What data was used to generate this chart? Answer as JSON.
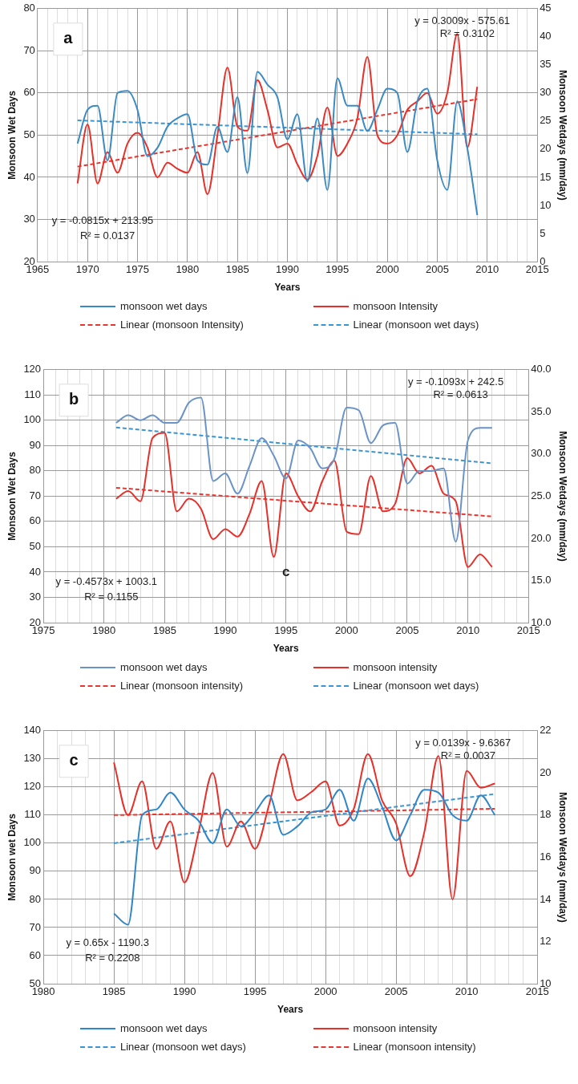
{
  "chart_data": [
    {
      "type": "line",
      "title": "a",
      "xlabel": "Years",
      "ylabel": "Monsoon Wet Days",
      "y2label": "Monsoon Wetdays (mm/day)",
      "grid": true,
      "legend": "bottom",
      "marker": "none",
      "xlim": [
        1965,
        2015
      ],
      "ylim": [
        20,
        80
      ],
      "y2lim": [
        0,
        45
      ],
      "xticks": [
        1965,
        {
          "value": 1966,
          "label": null
        },
        {
          "value": 1967,
          "label": null
        },
        {
          "value": 1968,
          "label": null
        },
        {
          "value": 1969,
          "label": null
        },
        1970,
        {
          "value": 1971,
          "label": null
        },
        {
          "value": 1972,
          "label": null
        },
        {
          "value": 1973,
          "label": null
        },
        {
          "value": 1974,
          "label": null
        },
        1975,
        {
          "value": 1976,
          "label": null
        },
        {
          "value": 1977,
          "label": null
        },
        {
          "value": 1978,
          "label": null
        },
        {
          "value": 1979,
          "label": null
        },
        1980,
        {
          "value": 1981,
          "label": null
        },
        {
          "value": 1982,
          "label": null
        },
        {
          "value": 1983,
          "label": null
        },
        {
          "value": 1984,
          "label": null
        },
        1985,
        {
          "value": 1986,
          "label": null
        },
        {
          "value": 1987,
          "label": null
        },
        {
          "value": 1988,
          "label": null
        },
        {
          "value": 1989,
          "label": null
        },
        1990,
        {
          "value": 1991,
          "label": null
        },
        {
          "value": 1992,
          "label": null
        },
        {
          "value": 1993,
          "label": null
        },
        {
          "value": 1994,
          "label": null
        },
        1995,
        {
          "value": 1996,
          "label": null
        },
        {
          "value": 1997,
          "label": null
        },
        {
          "value": 1998,
          "label": null
        },
        {
          "value": 1999,
          "label": null
        },
        2000,
        {
          "value": 2001,
          "label": null
        },
        {
          "value": 2002,
          "label": null
        },
        {
          "value": 2003,
          "label": null
        },
        {
          "value": 2004,
          "label": null
        },
        2005,
        {
          "value": 2006,
          "label": null
        },
        {
          "value": 2007,
          "label": null
        },
        {
          "value": 2008,
          "label": null
        },
        {
          "value": 2009,
          "label": null
        },
        2010,
        {
          "value": 2011,
          "label": null
        },
        {
          "value": 2012,
          "label": null
        },
        {
          "value": 2013,
          "label": null
        },
        {
          "value": 2014,
          "label": null
        },
        2015
      ],
      "yticks": [
        20,
        30,
        40,
        50,
        60,
        70,
        80
      ],
      "y2ticks": [
        0,
        5,
        10,
        15,
        20,
        25,
        30,
        35,
        40,
        45
      ],
      "x": [
        1969,
        1970,
        1971,
        1972,
        1973,
        1974,
        1975,
        1976,
        1977,
        1978,
        1979,
        1980,
        1981,
        1982,
        1983,
        1984,
        1985,
        1986,
        1987,
        1988,
        1989,
        1990,
        1991,
        1992,
        1993,
        1994,
        1995,
        1996,
        1997,
        1998,
        1999,
        2000,
        2001,
        2002,
        2003,
        2004,
        2005,
        2006,
        2007,
        2008,
        2009
      ],
      "series": [
        {
          "name": "monsoon wet days",
          "color": "#3a8ac4",
          "values": [
            48,
            56,
            57,
            44,
            60,
            60.5,
            56,
            45,
            47,
            52,
            54,
            55,
            44,
            43,
            52,
            46,
            59,
            41,
            65,
            62,
            59,
            49,
            55,
            39,
            54,
            37,
            63.5,
            57,
            57,
            51,
            56,
            61,
            60,
            46,
            58,
            61,
            44,
            37,
            58,
            47,
            31
          ]
        },
        {
          "name": "monsoon Intensity",
          "color": "#e8302a",
          "axis": "y2",
          "values": [
            13.9,
            24.4,
            13.9,
            19.5,
            15.8,
            21,
            22.9,
            20.3,
            15,
            17.6,
            16.5,
            15.8,
            19.5,
            12,
            22.5,
            34.5,
            24,
            23.3,
            32.3,
            27,
            20.3,
            21,
            17.3,
            14.6,
            18.8,
            27.4,
            18.8,
            21,
            25.5,
            36.4,
            22.5,
            21,
            22.5,
            27,
            28.5,
            30,
            26.3,
            30,
            40.5,
            20.3,
            31.1
          ]
        },
        {
          "name": "Linear (monsoon Intensity)",
          "color": "#e8362e",
          "axis": "y2",
          "type": "line",
          "line_style": "dashed",
          "x": [
            1969,
            2009
          ],
          "values": [
            16.9,
            28.9
          ]
        },
        {
          "name": "Linear (monsoon wet days)",
          "color": "#3a95d3",
          "type": "line",
          "line_style": "dashed",
          "x": [
            1969,
            2009
          ],
          "values": [
            53.5,
            50.2
          ]
        }
      ],
      "annotations": [
        "y = 0.3009x - 575.61",
        "R² = 0.3102",
        "y = -0.0815x + 213.95",
        "R² = 0.0137"
      ]
    },
    {
      "type": "line",
      "title": "b",
      "xlabel": "Years",
      "ylabel": "Monsoon Wet Days",
      "y2label": "Monsoon Wetdays (mm/day)",
      "grid": true,
      "legend": "bottom",
      "marker": "none",
      "xlim": [
        1975,
        2015
      ],
      "ylim": [
        20,
        120
      ],
      "y2lim": [
        10,
        40
      ],
      "xticks": [
        1975,
        {
          "value": 1976,
          "label": null
        },
        {
          "value": 1977,
          "label": null
        },
        {
          "value": 1978,
          "label": null
        },
        {
          "value": 1979,
          "label": null
        },
        1980,
        {
          "value": 1981,
          "label": null
        },
        {
          "value": 1982,
          "label": null
        },
        {
          "value": 1983,
          "label": null
        },
        {
          "value": 1984,
          "label": null
        },
        1985,
        {
          "value": 1986,
          "label": null
        },
        {
          "value": 1987,
          "label": null
        },
        {
          "value": 1988,
          "label": null
        },
        {
          "value": 1989,
          "label": null
        },
        1990,
        {
          "value": 1991,
          "label": null
        },
        {
          "value": 1992,
          "label": null
        },
        {
          "value": 1993,
          "label": null
        },
        {
          "value": 1994,
          "label": null
        },
        1995,
        {
          "value": 1996,
          "label": null
        },
        {
          "value": 1997,
          "label": null
        },
        {
          "value": 1998,
          "label": null
        },
        {
          "value": 1999,
          "label": null
        },
        2000,
        {
          "value": 2001,
          "label": null
        },
        {
          "value": 2002,
          "label": null
        },
        {
          "value": 2003,
          "label": null
        },
        {
          "value": 2004,
          "label": null
        },
        2005,
        {
          "value": 2006,
          "label": null
        },
        {
          "value": 2007,
          "label": null
        },
        {
          "value": 2008,
          "label": null
        },
        {
          "value": 2009,
          "label": null
        },
        2010,
        {
          "value": 2011,
          "label": null
        },
        {
          "value": 2012,
          "label": null
        },
        {
          "value": 2013,
          "label": null
        },
        {
          "value": 2014,
          "label": null
        },
        2015
      ],
      "yticks": [
        20,
        30,
        40,
        50,
        60,
        70,
        80,
        90,
        100,
        110,
        120
      ],
      "y2ticks": [
        {
          "value": 10,
          "label": "10.0"
        },
        {
          "value": 15,
          "label": "15.0"
        },
        {
          "value": 20,
          "label": "20.0"
        },
        {
          "value": 25,
          "label": "25.0"
        },
        {
          "value": 30,
          "label": "30.0"
        },
        {
          "value": 35,
          "label": "35.0"
        },
        {
          "value": 40,
          "label": "40.0"
        }
      ],
      "x": [
        1981,
        1982,
        1983,
        1984,
        1985,
        1986,
        1987,
        1988,
        1989,
        1990,
        1991,
        1992,
        1993,
        1994,
        1995,
        1996,
        1997,
        1998,
        1999,
        2000,
        2001,
        2002,
        2003,
        2004,
        2005,
        2006,
        2007,
        2008,
        2009,
        2010,
        2011,
        2012
      ],
      "series": [
        {
          "name": "monsoon wet days",
          "color": "#6a93c8",
          "values": [
            99,
            102,
            100,
            102,
            99,
            99,
            107,
            109,
            76,
            79,
            71,
            82,
            93,
            86,
            77,
            92,
            89,
            81,
            85,
            105,
            104,
            91,
            98,
            99,
            75,
            80,
            80,
            81,
            52,
            92,
            97,
            97
          ]
        },
        {
          "name": "monsoon intensity",
          "color": "#e8302a",
          "axis": "y2",
          "values": [
            24.7,
            25.6,
            24.4,
            31.9,
            32.5,
            23.2,
            24.7,
            23.5,
            19.9,
            21.1,
            20.2,
            22.9,
            26.8,
            17.8,
            27.7,
            25,
            23.2,
            26.8,
            29.2,
            20.8,
            20.5,
            27.4,
            23.2,
            24.1,
            29.5,
            27.7,
            28.6,
            25.3,
            24.4,
            16.6,
            18.1,
            16.6
          ]
        },
        {
          "name": "Linear (monsoon intensity)",
          "color": "#e8362e",
          "axis": "y2",
          "type": "line",
          "line_style": "dashed",
          "x": [
            1981,
            2012
          ],
          "values": [
            26.0,
            22.6
          ]
        },
        {
          "name": "Linear (monsoon wet days)",
          "color": "#3a95d3",
          "type": "line",
          "line_style": "dashed",
          "x": [
            1981,
            2012
          ],
          "values": [
            97.2,
            83.0
          ]
        }
      ],
      "annotations": [
        "y = -0.1093x + 242.5",
        "R² = 0.0613",
        "y = -0.4573x + 1003.1",
        "R² = 0.1155",
        "c"
      ]
    },
    {
      "type": "line",
      "title": "c",
      "xlabel": "Years",
      "ylabel": "Monsoon wet Days",
      "y2label": "Monsoon Wetdays (mm/day)",
      "grid": true,
      "legend": "bottom",
      "marker": "none",
      "xlim": [
        1980,
        2015
      ],
      "ylim": [
        50,
        140
      ],
      "y2lim": [
        10,
        22
      ],
      "xticks": [
        1980,
        {
          "value": 1981,
          "label": null
        },
        {
          "value": 1982,
          "label": null
        },
        {
          "value": 1983,
          "label": null
        },
        {
          "value": 1984,
          "label": null
        },
        1985,
        {
          "value": 1986,
          "label": null
        },
        {
          "value": 1987,
          "label": null
        },
        {
          "value": 1988,
          "label": null
        },
        {
          "value": 1989,
          "label": null
        },
        1990,
        {
          "value": 1991,
          "label": null
        },
        {
          "value": 1992,
          "label": null
        },
        {
          "value": 1993,
          "label": null
        },
        {
          "value": 1994,
          "label": null
        },
        1995,
        {
          "value": 1996,
          "label": null
        },
        {
          "value": 1997,
          "label": null
        },
        {
          "value": 1998,
          "label": null
        },
        {
          "value": 1999,
          "label": null
        },
        2000,
        {
          "value": 2001,
          "label": null
        },
        {
          "value": 2002,
          "label": null
        },
        {
          "value": 2003,
          "label": null
        },
        {
          "value": 2004,
          "label": null
        },
        2005,
        {
          "value": 2006,
          "label": null
        },
        {
          "value": 2007,
          "label": null
        },
        {
          "value": 2008,
          "label": null
        },
        {
          "value": 2009,
          "label": null
        },
        2010,
        {
          "value": 2011,
          "label": null
        },
        {
          "value": 2012,
          "label": null
        },
        {
          "value": 2013,
          "label": null
        },
        {
          "value": 2014,
          "label": null
        },
        2015
      ],
      "yticks": [
        50,
        60,
        70,
        80,
        90,
        100,
        110,
        120,
        130,
        140
      ],
      "y2ticks": [
        10,
        12,
        14,
        16,
        18,
        20,
        22
      ],
      "x": [
        1985,
        1986,
        1987,
        1988,
        1989,
        1990,
        1991,
        1992,
        1993,
        1994,
        1995,
        1996,
        1997,
        1998,
        1999,
        2000,
        2001,
        2002,
        2003,
        2004,
        2005,
        2006,
        2007,
        2008,
        2009,
        2010,
        2011,
        2012
      ],
      "series": [
        {
          "name": "monsoon wet days",
          "color": "#2f86c8",
          "values": [
            75,
            71,
            110,
            112,
            118,
            112,
            108,
            100,
            112,
            106,
            111,
            117,
            103,
            106,
            111,
            112,
            119,
            108,
            123,
            113,
            101,
            110,
            119,
            118,
            110,
            108,
            117,
            110
          ]
        },
        {
          "name": "monsoon intensity",
          "color": "#e8302a",
          "axis": "y2",
          "values": [
            20.5,
            18,
            19.6,
            16.4,
            17.7,
            14.8,
            17.2,
            20,
            16.5,
            17.7,
            16.4,
            18.5,
            20.9,
            18.7,
            19.1,
            19.6,
            17.5,
            18.3,
            20.9,
            18.7,
            17.6,
            15.1,
            17.2,
            20.8,
            14,
            20.1,
            19.3,
            19.5
          ]
        },
        {
          "name": "Linear (monsoon wet days)",
          "color": "#3a95d3",
          "type": "line",
          "line_style": "dashed",
          "x": [
            1985,
            2012
          ],
          "values": [
            100,
            117.5
          ]
        },
        {
          "name": "Linear (monsoon intensity)",
          "color": "#e8362e",
          "axis": "y2",
          "type": "line",
          "line_style": "dashed",
          "x": [
            1985,
            2012
          ],
          "values": [
            18.0,
            18.3
          ]
        }
      ],
      "annotations": [
        "y = 0.0139x - 9.6367",
        "R² = 0.0037",
        "y = 0.65x - 1190.3",
        "R² = 0.2208"
      ]
    }
  ]
}
